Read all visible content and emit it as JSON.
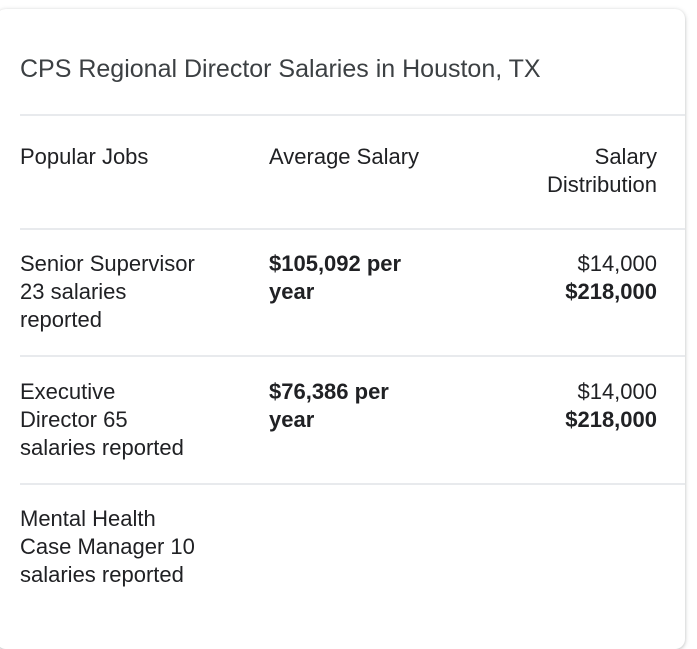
{
  "title": "CPS Regional Director Salaries in Houston, TX",
  "table": {
    "headers": {
      "job": "Popular Jobs",
      "salary": "Average Salary",
      "distribution_line1": "Salary",
      "distribution_line2": "Distribution"
    },
    "rows": [
      {
        "job_lines": [
          "Senior Supervisor",
          "23 salaries",
          "reported"
        ],
        "salary_lines": [
          "$105,092 per",
          "year"
        ],
        "dist_low": "$14,000",
        "dist_high": "$218,000"
      },
      {
        "job_lines": [
          "Executive",
          "Director 65",
          "salaries reported"
        ],
        "salary_lines": [
          "$76,386 per",
          "year"
        ],
        "dist_low": "$14,000",
        "dist_high": "$218,000"
      },
      {
        "job_lines": [
          "Mental Health",
          "Case Manager 10",
          "salaries reported"
        ]
      }
    ]
  }
}
